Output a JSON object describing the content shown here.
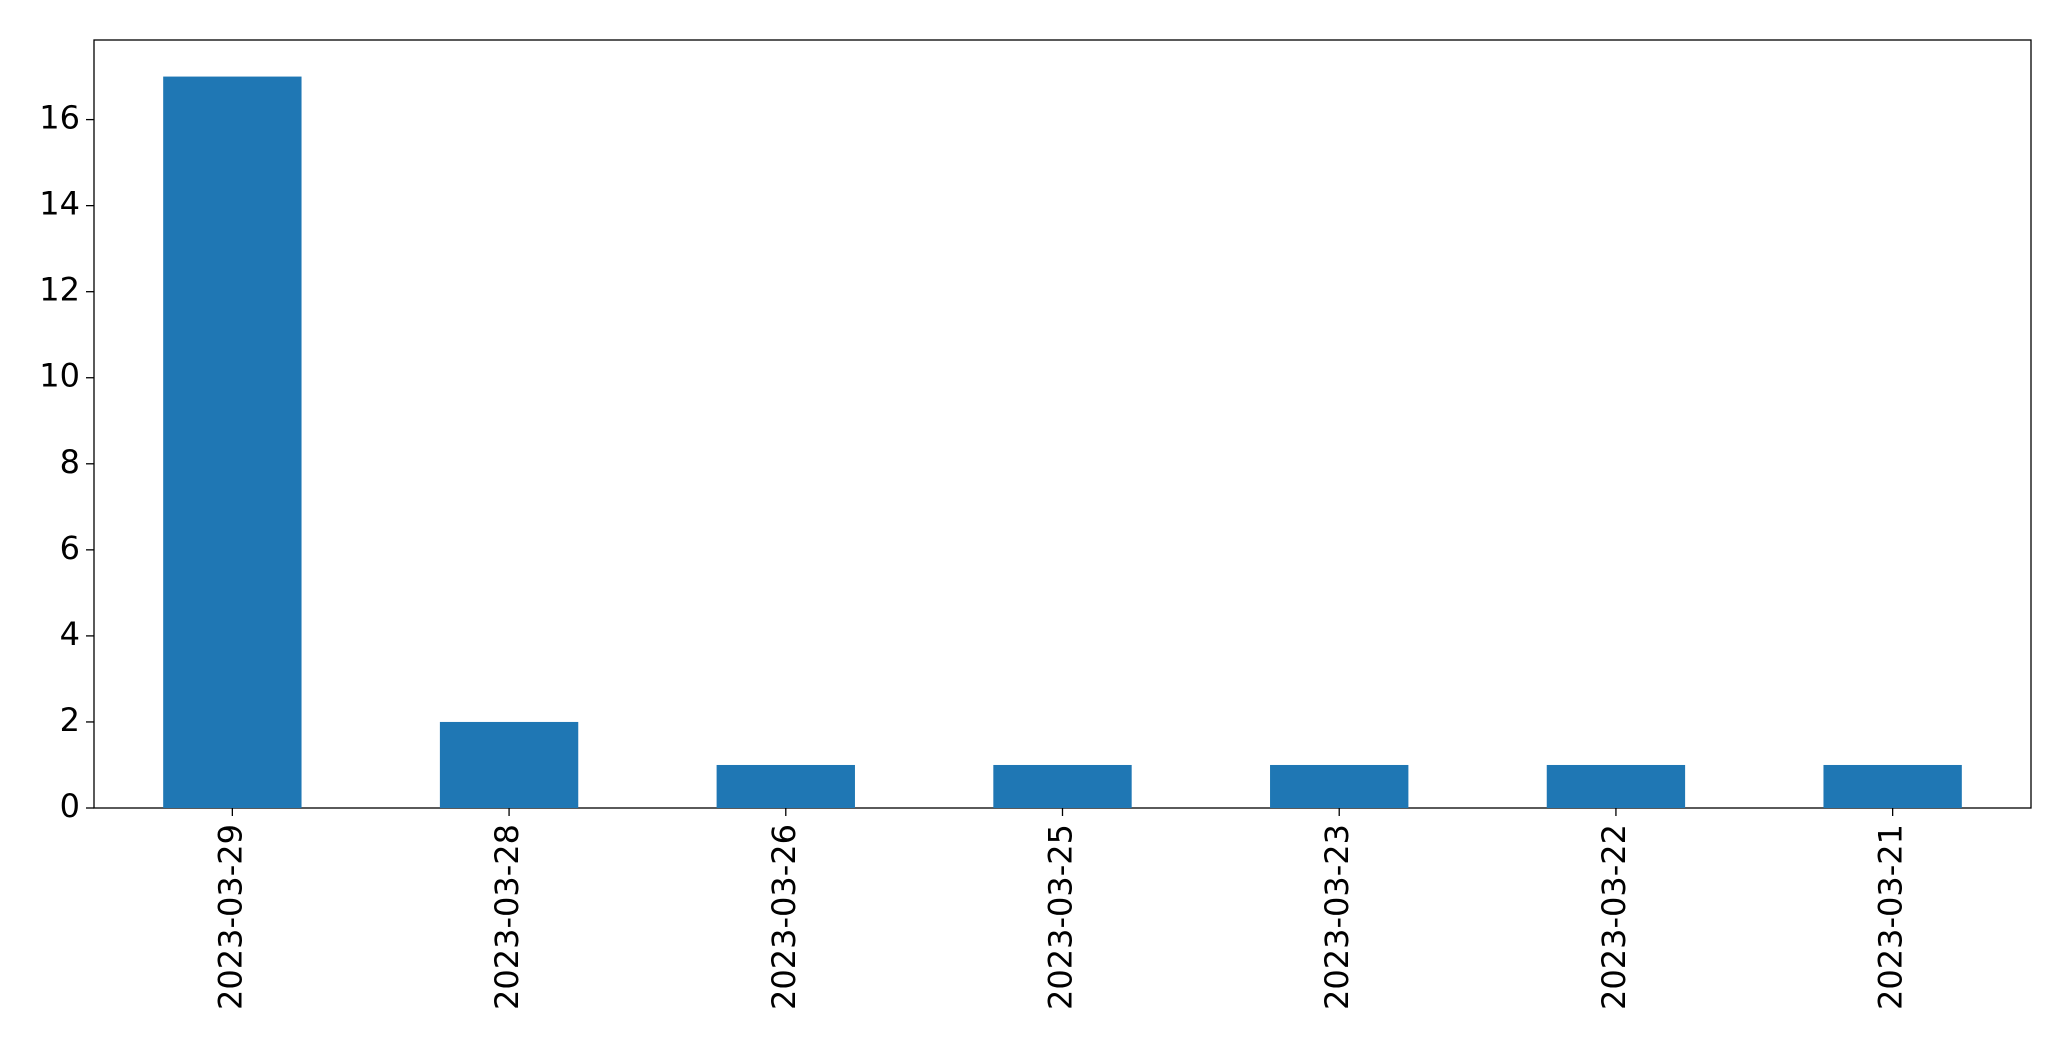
{
  "chart_data": {
    "type": "bar",
    "categories": [
      "2023-03-29",
      "2023-03-28",
      "2023-03-26",
      "2023-03-25",
      "2023-03-23",
      "2023-03-22",
      "2023-03-21"
    ],
    "values": [
      17,
      2,
      1,
      1,
      1,
      1,
      1
    ],
    "color": "#1f77b4",
    "ylim": [
      0,
      17.85
    ],
    "yticks": [
      0,
      2,
      4,
      6,
      8,
      10,
      12,
      14,
      16
    ],
    "grid": false
  }
}
